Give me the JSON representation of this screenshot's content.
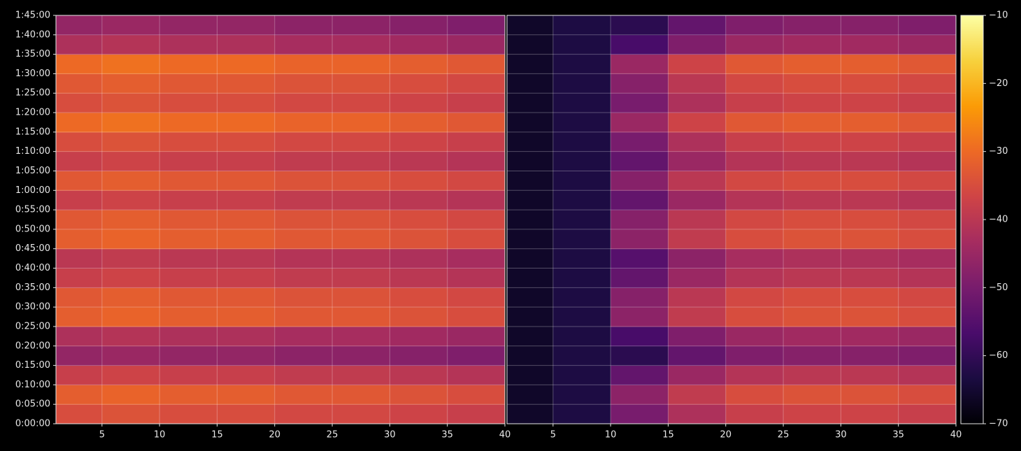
{
  "chart_data": [
    {
      "type": "heatmap",
      "xbins": [
        1,
        5,
        10,
        15,
        20,
        25,
        30,
        35,
        40
      ],
      "ybins": [
        0,
        300,
        600,
        900,
        1200,
        1500,
        1800,
        2100,
        2400,
        2700,
        3000,
        3300,
        3600,
        3900,
        4200,
        4500,
        4800,
        5100,
        5400,
        5700,
        6000,
        6300
      ],
      "values": [
        [
          -35,
          -34,
          -35,
          -35,
          -36,
          -36,
          -37,
          -38
        ],
        [
          -32,
          -31,
          -32,
          -32,
          -33,
          -33,
          -34,
          -35
        ],
        [
          -38,
          -37,
          -38,
          -38,
          -39,
          -39,
          -40,
          -41
        ],
        [
          -46,
          -45,
          -46,
          -46,
          -47,
          -47,
          -48,
          -49
        ],
        [
          -42,
          -41,
          -42,
          -42,
          -43,
          -43,
          -44,
          -45
        ],
        [
          -32,
          -31,
          -32,
          -32,
          -33,
          -33,
          -34,
          -35
        ],
        [
          -33,
          -32,
          -33,
          -33,
          -34,
          -34,
          -35,
          -36
        ],
        [
          -38,
          -37,
          -38,
          -38,
          -39,
          -39,
          -40,
          -41
        ],
        [
          -40,
          -39,
          -40,
          -40,
          -41,
          -41,
          -42,
          -43
        ],
        [
          -32,
          -31,
          -32,
          -32,
          -33,
          -33,
          -34,
          -35
        ],
        [
          -33,
          -32,
          -33,
          -33,
          -34,
          -34,
          -35,
          -36
        ],
        [
          -38,
          -37,
          -38,
          -38,
          -39,
          -39,
          -40,
          -41
        ],
        [
          -33,
          -32,
          -33,
          -33,
          -34,
          -34,
          -35,
          -36
        ],
        [
          -38,
          -37,
          -38,
          -38,
          -39,
          -39,
          -40,
          -41
        ],
        [
          -35,
          -34,
          -35,
          -35,
          -36,
          -36,
          -37,
          -38
        ],
        [
          -30,
          -29,
          -30,
          -30,
          -31,
          -31,
          -32,
          -33
        ],
        [
          -35,
          -34,
          -35,
          -35,
          -36,
          -36,
          -37,
          -38
        ],
        [
          -33,
          -32,
          -33,
          -33,
          -34,
          -34,
          -35,
          -36
        ],
        [
          -30,
          -29,
          -30,
          -30,
          -31,
          -31,
          -32,
          -33
        ],
        [
          -42,
          -41,
          -42,
          -42,
          -43,
          -43,
          -44,
          -45
        ],
        [
          -46,
          -45,
          -46,
          -46,
          -47,
          -47,
          -48,
          -49
        ]
      ],
      "xlim": [
        1,
        40
      ],
      "ylim": [
        0,
        6300
      ],
      "xticks": [
        5,
        10,
        15,
        20,
        25,
        30,
        35,
        40
      ],
      "yticks": [
        {
          "value": 0,
          "label": "0:00:00"
        },
        {
          "value": 300,
          "label": "0:05:00"
        },
        {
          "value": 600,
          "label": "0:10:00"
        },
        {
          "value": 900,
          "label": "0:15:00"
        },
        {
          "value": 1200,
          "label": "0:20:00"
        },
        {
          "value": 1500,
          "label": "0:25:00"
        },
        {
          "value": 1800,
          "label": "0:30:00"
        },
        {
          "value": 2100,
          "label": "0:35:00"
        },
        {
          "value": 2400,
          "label": "0:40:00"
        },
        {
          "value": 2700,
          "label": "0:45:00"
        },
        {
          "value": 3000,
          "label": "0:50:00"
        },
        {
          "value": 3300,
          "label": "0:55:00"
        },
        {
          "value": 3600,
          "label": "1:00:00"
        },
        {
          "value": 3900,
          "label": "1:05:00"
        },
        {
          "value": 4200,
          "label": "1:10:00"
        },
        {
          "value": 4500,
          "label": "1:15:00"
        },
        {
          "value": 4800,
          "label": "1:20:00"
        },
        {
          "value": 5100,
          "label": "1:25:00"
        },
        {
          "value": 5400,
          "label": "1:30:00"
        },
        {
          "value": 5700,
          "label": "1:35:00"
        },
        {
          "value": 6000,
          "label": "1:40:00"
        },
        {
          "value": 6300,
          "label": "1:45:00"
        }
      ],
      "grid": true
    },
    {
      "type": "heatmap",
      "xbins": [
        1,
        5,
        10,
        15,
        20,
        25,
        30,
        35,
        40
      ],
      "ybins": [
        0,
        300,
        600,
        900,
        1200,
        1500,
        1800,
        2100,
        2400,
        2700,
        3000,
        3300,
        3600,
        3900,
        4200,
        4500,
        4800,
        5100,
        5400,
        5700,
        6000,
        6300
      ],
      "values": [
        [
          -66,
          -63,
          -50,
          -42,
          -38,
          -37,
          -37,
          -38
        ],
        [
          -66,
          -63,
          -47,
          -39,
          -35,
          -34,
          -34,
          -35
        ],
        [
          -66,
          -63,
          -53,
          -45,
          -41,
          -40,
          -40,
          -41
        ],
        [
          -66,
          -63,
          -61,
          -53,
          -49,
          -48,
          -48,
          -49
        ],
        [
          -66,
          -63,
          -57,
          -49,
          -45,
          -44,
          -44,
          -45
        ],
        [
          -66,
          -63,
          -47,
          -39,
          -35,
          -34,
          -34,
          -35
        ],
        [
          -66,
          -63,
          -48,
          -40,
          -36,
          -35,
          -35,
          -36
        ],
        [
          -66,
          -63,
          -53,
          -45,
          -41,
          -40,
          -40,
          -41
        ],
        [
          -66,
          -63,
          -55,
          -47,
          -43,
          -42,
          -42,
          -43
        ],
        [
          -66,
          -63,
          -47,
          -39,
          -35,
          -34,
          -34,
          -35
        ],
        [
          -66,
          -63,
          -48,
          -40,
          -36,
          -35,
          -35,
          -36
        ],
        [
          -66,
          -63,
          -53,
          -45,
          -41,
          -40,
          -40,
          -41
        ],
        [
          -66,
          -63,
          -48,
          -40,
          -36,
          -35,
          -35,
          -36
        ],
        [
          -66,
          -63,
          -53,
          -45,
          -41,
          -40,
          -40,
          -41
        ],
        [
          -66,
          -63,
          -50,
          -42,
          -38,
          -37,
          -37,
          -38
        ],
        [
          -66,
          -63,
          -45,
          -37,
          -33,
          -32,
          -32,
          -33
        ],
        [
          -66,
          -63,
          -50,
          -42,
          -38,
          -37,
          -37,
          -38
        ],
        [
          -66,
          -63,
          -48,
          -40,
          -36,
          -35,
          -35,
          -36
        ],
        [
          -66,
          -63,
          -45,
          -37,
          -33,
          -32,
          -32,
          -33
        ],
        [
          -66,
          -63,
          -57,
          -49,
          -45,
          -44,
          -44,
          -45
        ],
        [
          -66,
          -63,
          -61,
          -53,
          -49,
          -48,
          -48,
          -49
        ]
      ],
      "xlim": [
        1,
        40
      ],
      "ylim": [
        0,
        6300
      ],
      "xticks": [
        5,
        10,
        15,
        20,
        25,
        30,
        35,
        40
      ],
      "yticks": [
        0,
        300,
        600,
        900,
        1200,
        1500,
        1800,
        2100,
        2400,
        2700,
        3000,
        3300,
        3600,
        3900,
        4200,
        4500,
        4800,
        5100,
        5400,
        5700,
        6000,
        6300
      ],
      "show_ytick_labels": false,
      "grid": true
    }
  ],
  "colorbar": {
    "colormap": "inferno",
    "lim": [
      -70,
      -10
    ],
    "ticks": [
      {
        "value": -70,
        "label": "−70"
      },
      {
        "value": -60,
        "label": "−60"
      },
      {
        "value": -50,
        "label": "−50"
      },
      {
        "value": -40,
        "label": "−40"
      },
      {
        "value": -30,
        "label": "−30"
      },
      {
        "value": -20,
        "label": "−20"
      },
      {
        "value": -10,
        "label": "−10"
      }
    ]
  }
}
